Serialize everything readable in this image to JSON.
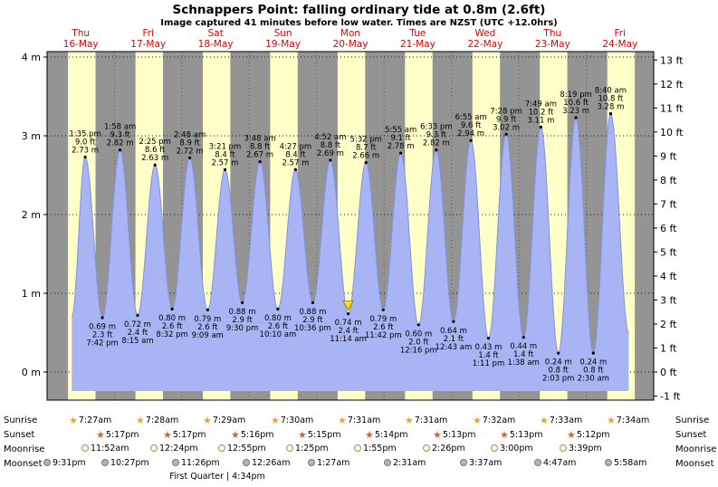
{
  "title": "Schnappers Point: falling  ordinary tide at 0.8m (2.6ft)",
  "subtitle": "Image captured 41 minutes before low water. Times are NZST (UTC +12.0hrs)",
  "chart_data": {
    "type": "area",
    "title": "Schnappers Point: falling  ordinary tide at 0.8m (2.6ft)",
    "subtitle": "Image captured 41 minutes before low water. Times are NZST (UTC +12.0hrs)",
    "ylim_m": [
      -0.35,
      4.07
    ],
    "grid": "dotted horizontal lines at each meter, dotted vertical lines at midnights",
    "y_axis_left": {
      "unit": "m",
      "labels": [
        "4 m",
        "3 m",
        "2 m",
        "1 m",
        "0 m"
      ]
    },
    "y_axis_right": {
      "unit": "ft",
      "labels": [
        "13 ft",
        "12 ft",
        "11 ft",
        "10 ft",
        "9 ft",
        "8 ft",
        "7 ft",
        "6 ft",
        "5 ft",
        "4 ft",
        "3 ft",
        "2 ft",
        "1 ft",
        "0 ft",
        "-1 ft"
      ]
    },
    "days": [
      {
        "name": "Thu",
        "date": "16-May"
      },
      {
        "name": "Fri",
        "date": "17-May"
      },
      {
        "name": "Sat",
        "date": "18-May"
      },
      {
        "name": "Sun",
        "date": "19-May"
      },
      {
        "name": "Mon",
        "date": "20-May"
      },
      {
        "name": "Tue",
        "date": "21-May"
      },
      {
        "name": "Wed",
        "date": "22-May"
      },
      {
        "name": "Thu",
        "date": "23-May"
      },
      {
        "name": "Fri",
        "date": "24-May"
      }
    ],
    "tide_events": [
      {
        "day": 0,
        "t": 13.58,
        "time": "1:35 pm",
        "height_m": "2.73",
        "height_ft": "9.0",
        "type": "high"
      },
      {
        "day": 0,
        "t": 19.7,
        "time": "7:42 pm",
        "height_m": "0.69",
        "height_ft": "2.3",
        "type": "low"
      },
      {
        "day": 1,
        "t": 1.97,
        "time": "1:58 am",
        "height_m": "2.82",
        "height_ft": "9.3",
        "type": "high"
      },
      {
        "day": 1,
        "t": 8.25,
        "time": "8:15 am",
        "height_m": "0.72",
        "height_ft": "2.4",
        "type": "low"
      },
      {
        "day": 1,
        "t": 14.42,
        "time": "2:25 pm",
        "height_m": "2.63",
        "height_ft": "8.6",
        "type": "high"
      },
      {
        "day": 1,
        "t": 20.53,
        "time": "8:32 pm",
        "height_m": "0.80",
        "height_ft": "2.6",
        "type": "low"
      },
      {
        "day": 2,
        "t": 2.8,
        "time": "2:48 am",
        "height_m": "2.72",
        "height_ft": "8.9",
        "type": "high"
      },
      {
        "day": 2,
        "t": 9.15,
        "time": "9:09 am",
        "height_m": "0.79",
        "height_ft": "2.6",
        "type": "low"
      },
      {
        "day": 2,
        "t": 15.35,
        "time": "3:21 pm",
        "height_m": "2.57",
        "height_ft": "8.4",
        "type": "high"
      },
      {
        "day": 2,
        "t": 21.5,
        "time": "9:30 pm",
        "height_m": "0.88",
        "height_ft": "2.9",
        "type": "low"
      },
      {
        "day": 3,
        "t": 3.8,
        "time": "3:48 am",
        "height_m": "2.67",
        "height_ft": "8.8",
        "type": "high"
      },
      {
        "day": 3,
        "t": 10.17,
        "time": "10:10 am",
        "height_m": "0.80",
        "height_ft": "2.6",
        "type": "low"
      },
      {
        "day": 3,
        "t": 16.45,
        "time": "4:27 pm",
        "height_m": "2.57",
        "height_ft": "8.4",
        "type": "high"
      },
      {
        "day": 3,
        "t": 22.6,
        "time": "10:36 pm",
        "height_m": "0.88",
        "height_ft": "2.9",
        "type": "low"
      },
      {
        "day": 4,
        "t": 4.87,
        "time": "4:52 am",
        "height_m": "2.69",
        "height_ft": "8.8",
        "type": "high"
      },
      {
        "day": 4,
        "t": 11.23,
        "time": "11:14 am",
        "height_m": "0.74",
        "height_ft": "2.4",
        "type": "low"
      },
      {
        "day": 4,
        "t": 17.53,
        "time": "5:32 pm",
        "height_m": "2.66",
        "height_ft": "8.7",
        "type": "high"
      },
      {
        "day": 4,
        "t": 23.7,
        "time": "11:42 pm",
        "height_m": "0.79",
        "height_ft": "2.6",
        "type": "low"
      },
      {
        "day": 5,
        "t": 5.92,
        "time": "5:55 am",
        "height_m": "2.78",
        "height_ft": "9.1",
        "type": "high"
      },
      {
        "day": 5,
        "t": 12.27,
        "time": "12:16 pm",
        "height_m": "0.60",
        "height_ft": "2.0",
        "type": "low"
      },
      {
        "day": 5,
        "t": 18.55,
        "time": "6:33 pm",
        "height_m": "2.82",
        "height_ft": "9.3",
        "type": "high"
      },
      {
        "day": 6,
        "t": 0.72,
        "time": "12:43 am",
        "height_m": "0.64",
        "height_ft": "2.1",
        "type": "low"
      },
      {
        "day": 6,
        "t": 6.92,
        "time": "6:55 am",
        "height_m": "2.94",
        "height_ft": "9.6",
        "type": "high"
      },
      {
        "day": 6,
        "t": 13.18,
        "time": "1:11 pm",
        "height_m": "0.43",
        "height_ft": "1.4",
        "type": "low"
      },
      {
        "day": 6,
        "t": 19.47,
        "time": "7:28 pm",
        "height_m": "3.02",
        "height_ft": "9.9",
        "type": "high"
      },
      {
        "day": 7,
        "t": 1.63,
        "time": "1:38 am",
        "height_m": "0.44",
        "height_ft": "1.4",
        "type": "low"
      },
      {
        "day": 7,
        "t": 7.82,
        "time": "7:49 am",
        "height_m": "3.11",
        "height_ft": "10.2",
        "type": "high"
      },
      {
        "day": 7,
        "t": 14.05,
        "time": "2:03 pm",
        "height_m": "0.24",
        "height_ft": "0.8",
        "type": "low"
      },
      {
        "day": 7,
        "t": 20.32,
        "time": "8:19 pm",
        "height_m": "3.23",
        "height_ft": "10.6",
        "type": "high"
      },
      {
        "day": 8,
        "t": 2.5,
        "time": "2:30 am",
        "height_m": "0.24",
        "height_ft": "0.8",
        "type": "low"
      },
      {
        "day": 8,
        "t": 8.67,
        "time": "8:40 am",
        "height_m": "3.28",
        "height_ft": "10.8",
        "type": "high"
      }
    ],
    "current_event_index": 15,
    "colors": {
      "night_band": "#949494",
      "day_band": "#ffffc8",
      "tide_fill": "#a9b4f4",
      "tide_stroke": "#8091e0",
      "day_label": "#e60000",
      "current_marker": "#ffe000"
    }
  },
  "astro": {
    "sunrise": {
      "label": "Sunrise",
      "icon": "star-icon",
      "icon_color": "#f0a02c",
      "times": [
        "7:27am",
        "7:28am",
        "7:29am",
        "7:30am",
        "7:31am",
        "7:31am",
        "7:32am",
        "7:33am",
        "7:34am"
      ]
    },
    "sunset": {
      "label": "Sunset",
      "icon": "star-icon",
      "icon_color": "#e2601c",
      "times": [
        "5:17pm",
        "5:17pm",
        "5:16pm",
        "5:15pm",
        "5:14pm",
        "5:13pm",
        "5:13pm",
        "5:12pm"
      ]
    },
    "moonrise": {
      "label": "Moonrise",
      "icon": "moon-circle-icon",
      "icon_color": "#ffffc4",
      "icon_border": "#909090",
      "times": [
        "11:52am",
        "12:24pm",
        "12:55pm",
        "1:25pm",
        "1:55pm",
        "2:26pm",
        "3:00pm",
        "3:39pm"
      ]
    },
    "moonset": {
      "label": "Moonset",
      "icon": "moon-circle-icon",
      "icon_color": "#b5b5b5",
      "icon_border": "#787878",
      "times": [
        "9:31pm",
        "10:27pm",
        "11:26pm",
        "12:26am",
        "1:27am",
        "2:31am",
        "3:37am",
        "4:47am",
        "5:58am"
      ]
    },
    "moon_phase_note": "First Quarter | 4:34pm"
  }
}
